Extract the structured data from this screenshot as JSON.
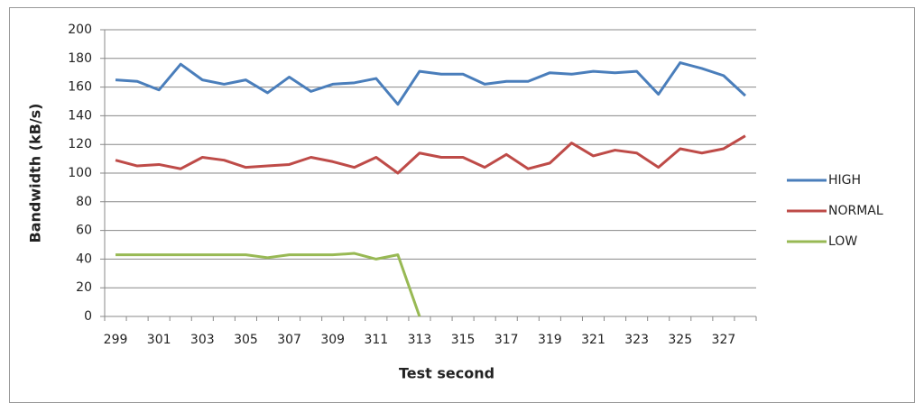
{
  "chart_data": {
    "type": "line",
    "x_label": "Test second",
    "y_label": "Bandwidth (kB/s)",
    "categories": [
      "299",
      null,
      "301",
      null,
      "303",
      null,
      "305",
      null,
      "307",
      null,
      "309",
      null,
      "311",
      null,
      "313",
      null,
      "315",
      null,
      "317",
      null,
      "319",
      null,
      "321",
      null,
      "323",
      null,
      "325",
      null,
      "327",
      null
    ],
    "series": [
      {
        "name": "HIGH",
        "color": "#4a7ebb",
        "values": [
          165,
          164,
          158,
          176,
          165,
          162,
          165,
          156,
          167,
          157,
          162,
          163,
          166,
          148,
          171,
          169,
          169,
          162,
          164,
          164,
          170,
          169,
          171,
          170,
          171,
          155,
          177,
          173,
          168,
          154
        ]
      },
      {
        "name": "NORMAL",
        "color": "#be4b48",
        "values": [
          109,
          105,
          106,
          103,
          111,
          109,
          104,
          105,
          106,
          111,
          108,
          104,
          111,
          100,
          114,
          111,
          111,
          104,
          113,
          103,
          107,
          121,
          112,
          116,
          114,
          104,
          117,
          114,
          117,
          126
        ]
      },
      {
        "name": "LOW",
        "color": "#98b954",
        "values": [
          43,
          43,
          43,
          43,
          43,
          43,
          43,
          41,
          43,
          43,
          43,
          44,
          40,
          43,
          0,
          null,
          null,
          null,
          null,
          null,
          null,
          null,
          null,
          null,
          null,
          null,
          null,
          null,
          null,
          null
        ]
      }
    ],
    "ylim": [
      0,
      200
    ],
    "yticks": [
      0,
      20,
      40,
      60,
      80,
      100,
      120,
      140,
      160,
      180,
      200
    ],
    "grid": true,
    "legend": "right"
  }
}
